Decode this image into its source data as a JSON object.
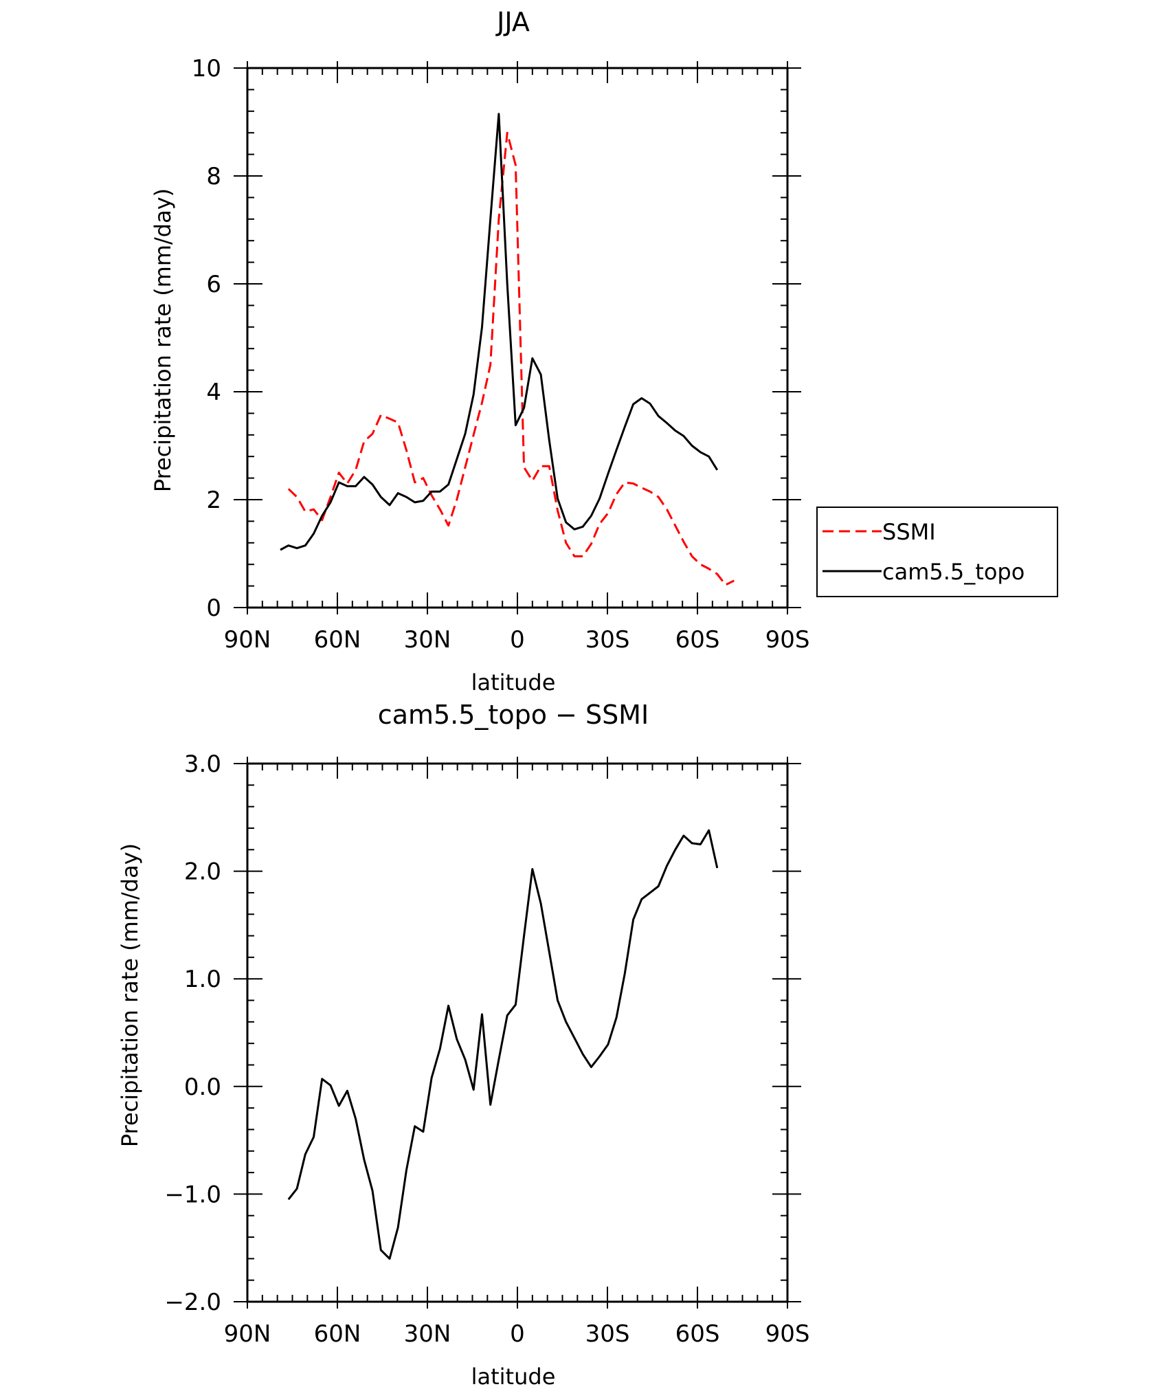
{
  "chart_data": [
    {
      "type": "line",
      "title": "JJA",
      "xlabel": "latitude",
      "ylabel": "Precipitation rate (mm/day)",
      "xlim": [
        90,
        -90
      ],
      "ylim": [
        0,
        10
      ],
      "x_ticks": [
        {
          "value": 90,
          "label": "90N"
        },
        {
          "value": 60,
          "label": "60N"
        },
        {
          "value": 30,
          "label": "30N"
        },
        {
          "value": 0,
          "label": "0"
        },
        {
          "value": -30,
          "label": "30S"
        },
        {
          "value": -60,
          "label": "60S"
        },
        {
          "value": -90,
          "label": "90S"
        }
      ],
      "y_ticks": [
        {
          "value": 0,
          "label": "0"
        },
        {
          "value": 2,
          "label": "2"
        },
        {
          "value": 4,
          "label": "4"
        },
        {
          "value": 6,
          "label": "6"
        },
        {
          "value": 8,
          "label": "8"
        },
        {
          "value": 10,
          "label": "10"
        }
      ],
      "legend": {
        "position": "right"
      },
      "series": [
        {
          "name": "SSMI",
          "color": "#ff0000",
          "dash": "dashed",
          "points": [
            [
              76.3,
              2.2
            ],
            [
              73.5,
              2.05
            ],
            [
              70.7,
              1.78
            ],
            [
              67.9,
              1.82
            ],
            [
              65.1,
              1.62
            ],
            [
              62.3,
              2.05
            ],
            [
              59.5,
              2.5
            ],
            [
              56.7,
              2.3
            ],
            [
              53.9,
              2.55
            ],
            [
              51.1,
              3.08
            ],
            [
              48.3,
              3.22
            ],
            [
              45.5,
              3.57
            ],
            [
              42.6,
              3.5
            ],
            [
              39.8,
              3.43
            ],
            [
              37.0,
              2.92
            ],
            [
              34.2,
              2.32
            ],
            [
              31.4,
              2.4
            ],
            [
              28.6,
              2.08
            ],
            [
              25.8,
              1.82
            ],
            [
              23.0,
              1.52
            ],
            [
              20.2,
              2.0
            ],
            [
              17.4,
              2.6
            ],
            [
              14.6,
              3.2
            ],
            [
              11.8,
              3.8
            ],
            [
              9.0,
              4.5
            ],
            [
              6.2,
              7.2
            ],
            [
              3.4,
              8.8
            ],
            [
              0.6,
              8.2
            ],
            [
              -2.2,
              2.6
            ],
            [
              -5.0,
              2.35
            ],
            [
              -7.8,
              2.62
            ],
            [
              -10.6,
              2.62
            ],
            [
              -13.4,
              1.8
            ],
            [
              -16.2,
              1.2
            ],
            [
              -19.0,
              0.95
            ],
            [
              -21.8,
              0.95
            ],
            [
              -24.6,
              1.18
            ],
            [
              -27.4,
              1.55
            ],
            [
              -30.2,
              1.75
            ],
            [
              -33.0,
              2.1
            ],
            [
              -35.8,
              2.32
            ],
            [
              -38.6,
              2.3
            ],
            [
              -41.4,
              2.22
            ],
            [
              -44.2,
              2.15
            ],
            [
              -47.0,
              2.05
            ],
            [
              -49.8,
              1.82
            ],
            [
              -52.6,
              1.52
            ],
            [
              -55.4,
              1.22
            ],
            [
              -58.2,
              0.95
            ],
            [
              -61.0,
              0.8
            ],
            [
              -63.8,
              0.72
            ],
            [
              -66.6,
              0.62
            ],
            [
              -69.4,
              0.42
            ],
            [
              -72.2,
              0.5
            ]
          ]
        },
        {
          "name": "cam5.5_topo",
          "color": "#000000",
          "dash": "solid",
          "points": [
            [
              79.0,
              1.07
            ],
            [
              76.3,
              1.15
            ],
            [
              73.5,
              1.1
            ],
            [
              70.7,
              1.15
            ],
            [
              67.9,
              1.37
            ],
            [
              65.1,
              1.7
            ],
            [
              62.3,
              1.95
            ],
            [
              59.5,
              2.32
            ],
            [
              56.7,
              2.25
            ],
            [
              53.9,
              2.25
            ],
            [
              51.1,
              2.42
            ],
            [
              48.3,
              2.28
            ],
            [
              45.5,
              2.05
            ],
            [
              42.6,
              1.9
            ],
            [
              39.8,
              2.12
            ],
            [
              37.0,
              2.05
            ],
            [
              34.2,
              1.95
            ],
            [
              31.4,
              1.98
            ],
            [
              28.6,
              2.15
            ],
            [
              25.8,
              2.15
            ],
            [
              23.0,
              2.28
            ],
            [
              20.2,
              2.75
            ],
            [
              17.4,
              3.22
            ],
            [
              14.6,
              3.95
            ],
            [
              11.8,
              5.2
            ],
            [
              9.0,
              7.2
            ],
            [
              6.2,
              9.15
            ],
            [
              3.4,
              6.0
            ],
            [
              0.6,
              3.38
            ],
            [
              -2.2,
              3.7
            ],
            [
              -5.0,
              4.62
            ],
            [
              -7.8,
              4.32
            ],
            [
              -10.6,
              3.1
            ],
            [
              -13.4,
              2.02
            ],
            [
              -16.2,
              1.58
            ],
            [
              -19.0,
              1.45
            ],
            [
              -21.8,
              1.5
            ],
            [
              -24.6,
              1.7
            ],
            [
              -27.4,
              2.02
            ],
            [
              -30.2,
              2.48
            ],
            [
              -33.0,
              2.92
            ],
            [
              -35.8,
              3.35
            ],
            [
              -38.6,
              3.77
            ],
            [
              -41.4,
              3.88
            ],
            [
              -44.2,
              3.78
            ],
            [
              -47.0,
              3.55
            ],
            [
              -49.8,
              3.42
            ],
            [
              -52.6,
              3.28
            ],
            [
              -55.4,
              3.18
            ],
            [
              -58.2,
              3.0
            ],
            [
              -61.0,
              2.88
            ],
            [
              -63.8,
              2.8
            ],
            [
              -66.6,
              2.55
            ]
          ]
        }
      ]
    },
    {
      "type": "line",
      "title": "cam5.5_topo − SSMI",
      "xlabel": "latitude",
      "ylabel": "Precipitation rate (mm/day)",
      "xlim": [
        90,
        -90
      ],
      "ylim": [
        -2.0,
        3.0
      ],
      "x_ticks": [
        {
          "value": 90,
          "label": "90N"
        },
        {
          "value": 60,
          "label": "60N"
        },
        {
          "value": 30,
          "label": "30N"
        },
        {
          "value": 0,
          "label": "0"
        },
        {
          "value": -30,
          "label": "30S"
        },
        {
          "value": -60,
          "label": "60S"
        },
        {
          "value": -90,
          "label": "90S"
        }
      ],
      "y_ticks": [
        {
          "value": -2,
          "label": "−2.0"
        },
        {
          "value": -1,
          "label": "−1.0"
        },
        {
          "value": 0,
          "label": "0.0"
        },
        {
          "value": 1,
          "label": "1.0"
        },
        {
          "value": 2,
          "label": "2.0"
        },
        {
          "value": 3,
          "label": "3.0"
        }
      ],
      "series": [
        {
          "name": "cam5.5_topo − SSMI",
          "color": "#000000",
          "dash": "solid",
          "points": [
            [
              76.3,
              -1.05
            ],
            [
              73.5,
              -0.95
            ],
            [
              70.7,
              -0.63
            ],
            [
              67.9,
              -0.47
            ],
            [
              65.1,
              0.07
            ],
            [
              62.3,
              0.01
            ],
            [
              59.5,
              -0.18
            ],
            [
              56.7,
              -0.04
            ],
            [
              53.9,
              -0.3
            ],
            [
              51.1,
              -0.68
            ],
            [
              48.3,
              -0.97
            ],
            [
              45.5,
              -1.52
            ],
            [
              42.6,
              -1.6
            ],
            [
              39.8,
              -1.31
            ],
            [
              37.0,
              -0.78
            ],
            [
              34.2,
              -0.37
            ],
            [
              31.4,
              -0.42
            ],
            [
              28.6,
              0.08
            ],
            [
              25.8,
              0.35
            ],
            [
              23.0,
              0.75
            ],
            [
              20.2,
              0.44
            ],
            [
              17.4,
              0.25
            ],
            [
              14.6,
              -0.03
            ],
            [
              11.8,
              0.67
            ],
            [
              9.0,
              -0.17
            ],
            [
              6.2,
              0.25
            ],
            [
              3.4,
              0.66
            ],
            [
              0.6,
              0.76
            ],
            [
              -2.2,
              1.4
            ],
            [
              -5.0,
              2.02
            ],
            [
              -7.8,
              1.7
            ],
            [
              -10.6,
              1.25
            ],
            [
              -13.4,
              0.8
            ],
            [
              -16.2,
              0.6
            ],
            [
              -19.0,
              0.45
            ],
            [
              -21.8,
              0.3
            ],
            [
              -24.6,
              0.18
            ],
            [
              -27.4,
              0.28
            ],
            [
              -30.2,
              0.39
            ],
            [
              -33.0,
              0.64
            ],
            [
              -35.8,
              1.05
            ],
            [
              -38.6,
              1.55
            ],
            [
              -41.4,
              1.74
            ],
            [
              -44.2,
              1.8
            ],
            [
              -47.0,
              1.86
            ],
            [
              -49.8,
              2.05
            ],
            [
              -52.6,
              2.2
            ],
            [
              -55.4,
              2.33
            ],
            [
              -58.2,
              2.26
            ],
            [
              -61.0,
              2.25
            ],
            [
              -63.8,
              2.38
            ],
            [
              -66.6,
              2.03
            ]
          ]
        }
      ]
    }
  ]
}
